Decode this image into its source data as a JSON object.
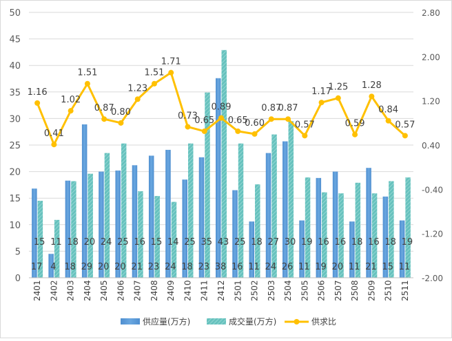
{
  "chart_data": {
    "type": "bar+line",
    "categories": [
      "2401",
      "2402",
      "2403",
      "2404",
      "2405",
      "2406",
      "2407",
      "2408",
      "2409",
      "2410",
      "2411",
      "2412",
      "2501",
      "2502",
      "2503",
      "2504",
      "2505",
      "2506",
      "2507",
      "2508",
      "2509",
      "2510",
      "2511"
    ],
    "series": [
      {
        "name": "供应量(万方)",
        "type": "bar",
        "axis": "left",
        "color": "#5B9BD5",
        "values": [
          16.8,
          4.5,
          18.3,
          28.9,
          20.0,
          20.2,
          21.2,
          23.0,
          24.1,
          18.5,
          22.7,
          37.6,
          16.5,
          10.6,
          23.5,
          25.7,
          10.8,
          18.8,
          20.0,
          10.6,
          20.7,
          15.3,
          10.8
        ],
        "labels": [
          "17",
          "4",
          "18",
          "29",
          "20",
          "20",
          "21",
          "23",
          "24",
          "18",
          "23",
          "38",
          "16",
          "11",
          "24",
          "26",
          "11",
          "19",
          "20",
          "11",
          "21",
          "15",
          "11"
        ]
      },
      {
        "name": "成交量(万方)",
        "type": "bar",
        "axis": "left",
        "color": "#67C2BE",
        "values": [
          14.5,
          10.9,
          18.2,
          19.6,
          23.5,
          25.3,
          16.3,
          15.4,
          14.3,
          25.3,
          34.9,
          42.9,
          25.3,
          17.6,
          27.0,
          29.5,
          18.9,
          16.1,
          15.9,
          17.9,
          15.9,
          18.2,
          18.9
        ],
        "labels": [
          "15",
          "11",
          "18",
          "20",
          "24",
          "25",
          "16",
          "15",
          "14",
          "25",
          "35",
          "43",
          "25",
          "18",
          "27",
          "30",
          "19",
          "16",
          "16",
          "18",
          "16",
          "18",
          "19"
        ]
      },
      {
        "name": "供求比",
        "type": "line",
        "axis": "right",
        "color": "#FFC000",
        "values": [
          1.16,
          0.41,
          1.02,
          1.51,
          0.87,
          0.8,
          1.23,
          1.51,
          1.71,
          0.73,
          0.65,
          0.89,
          0.65,
          0.6,
          0.87,
          0.87,
          0.57,
          1.17,
          1.25,
          0.59,
          1.28,
          0.84,
          0.57
        ],
        "labels": [
          "1.16",
          "0.41",
          "1.02",
          "1.51",
          "0.87",
          "0.80",
          "1.23",
          "1.51",
          "1.71",
          "0.73",
          "0.65",
          "0.89",
          "0.65",
          "0.60",
          "0.87",
          "0.87",
          "0.57",
          "1.17",
          "1.25",
          "0.59",
          "1.28",
          "0.84",
          "0.57"
        ]
      }
    ],
    "left_axis": {
      "min": 0,
      "max": 50,
      "ticks": [
        "0",
        "5",
        "10",
        "15",
        "20",
        "25",
        "30",
        "35",
        "40",
        "45",
        "50"
      ]
    },
    "right_axis": {
      "min": -2.0,
      "max": 2.8,
      "ticks": [
        "-2.00",
        "-1.20",
        "-0.40",
        "0.40",
        "1.20",
        "2.00",
        "2.80"
      ]
    },
    "grid": true,
    "legend_position": "bottom",
    "title": ""
  }
}
